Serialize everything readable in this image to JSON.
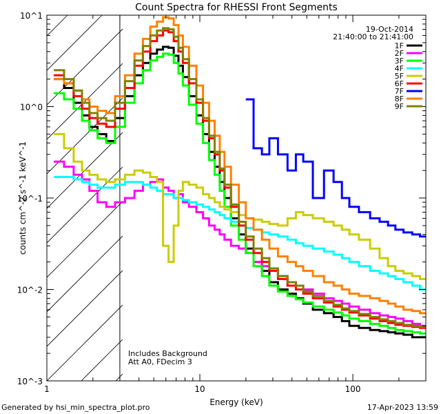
{
  "chart_data": {
    "type": "line",
    "title": "Count Spectra for RHESSI Front Segments",
    "xlabel": "Energy (keV)",
    "ylabel": "counts cm^-2 s^-1 keV^-1",
    "xscale": "log",
    "yscale": "log",
    "xlim": [
      1.0,
      300.0
    ],
    "ylim": [
      0.001,
      10.0
    ],
    "x_tick_labels": [
      "1",
      "10",
      "100"
    ],
    "y_tick_labels": [
      "10^-3",
      "10^-2",
      "10^-1",
      "10^0",
      "10^1"
    ],
    "date": "19-Oct-2014",
    "time_range": "21:40:00 to 21:41:00",
    "annotations": [
      "Includes Background",
      "Att A0, FDecim 3"
    ],
    "hatched_region_below_keV": 3.0,
    "x": [
      1.2,
      1.4,
      1.6,
      1.8,
      2.0,
      2.3,
      2.6,
      3.0,
      3.5,
      4.0,
      4.5,
      5.0,
      5.5,
      6.0,
      6.5,
      7.0,
      7.5,
      8.0,
      9.0,
      10,
      11,
      12,
      13,
      14,
      15,
      17,
      19,
      21,
      24,
      27,
      30,
      35,
      40,
      45,
      50,
      60,
      70,
      80,
      90,
      100,
      120,
      140,
      160,
      180,
      200,
      230,
      260,
      290
    ],
    "series": [
      {
        "name": "1F",
        "color": "#000000",
        "values": [
          2.0,
          1.6,
          1.1,
          0.8,
          0.6,
          0.5,
          0.42,
          0.75,
          1.3,
          2.2,
          3.0,
          3.8,
          4.2,
          4.5,
          4.4,
          3.6,
          2.8,
          2.1,
          1.3,
          0.8,
          0.5,
          0.32,
          0.22,
          0.15,
          0.1,
          0.06,
          0.04,
          0.028,
          0.02,
          0.016,
          0.012,
          0.01,
          0.009,
          0.008,
          0.007,
          0.006,
          0.0055,
          0.005,
          0.0045,
          0.004,
          0.0038,
          0.0036,
          0.0035,
          0.0034,
          0.0033,
          0.0032,
          0.003,
          0.003
        ]
      },
      {
        "name": "2F",
        "color": "#ff00ff",
        "values": [
          0.25,
          0.22,
          0.18,
          0.16,
          0.12,
          0.09,
          0.08,
          0.09,
          0.1,
          0.12,
          0.14,
          0.15,
          0.16,
          0.13,
          0.12,
          0.1,
          0.11,
          0.09,
          0.08,
          0.07,
          0.06,
          0.05,
          0.045,
          0.04,
          0.035,
          0.03,
          0.028,
          0.025,
          0.02,
          0.018,
          0.016,
          0.014,
          0.012,
          0.011,
          0.01,
          0.009,
          0.008,
          0.0075,
          0.007,
          0.0065,
          0.006,
          0.0055,
          0.0052,
          0.005,
          0.0048,
          0.0045,
          0.0042,
          0.004
        ]
      },
      {
        "name": "3F",
        "color": "#00ff00",
        "values": [
          1.4,
          1.2,
          0.95,
          0.7,
          0.55,
          0.45,
          0.4,
          0.6,
          1.1,
          1.8,
          2.5,
          3.2,
          3.5,
          3.8,
          3.7,
          3.0,
          2.3,
          1.7,
          1.05,
          0.65,
          0.4,
          0.26,
          0.18,
          0.12,
          0.08,
          0.05,
          0.035,
          0.025,
          0.018,
          0.014,
          0.011,
          0.0095,
          0.0085,
          0.0078,
          0.0072,
          0.0065,
          0.006,
          0.0056,
          0.0052,
          0.0048,
          0.0045,
          0.0042,
          0.004,
          0.0038,
          0.0036,
          0.0035,
          0.0034,
          0.0033
        ]
      },
      {
        "name": "4F",
        "color": "#00ffff",
        "values": [
          0.17,
          0.17,
          0.16,
          0.15,
          0.14,
          0.13,
          0.13,
          0.14,
          0.15,
          0.15,
          0.14,
          0.13,
          0.12,
          0.11,
          0.11,
          0.1,
          0.1,
          0.095,
          0.09,
          0.085,
          0.08,
          0.075,
          0.07,
          0.065,
          0.06,
          0.055,
          0.05,
          0.047,
          0.045,
          0.042,
          0.04,
          0.038,
          0.035,
          0.032,
          0.03,
          0.028,
          0.026,
          0.024,
          0.022,
          0.02,
          0.018,
          0.016,
          0.015,
          0.014,
          0.013,
          0.012,
          0.011,
          0.01
        ]
      },
      {
        "name": "5F",
        "color": "#cccc00",
        "values": [
          0.5,
          0.35,
          0.25,
          0.2,
          0.18,
          0.16,
          0.15,
          0.16,
          0.18,
          0.2,
          0.19,
          0.17,
          0.15,
          0.03,
          0.02,
          0.05,
          0.12,
          0.15,
          0.14,
          0.13,
          0.11,
          0.1,
          0.09,
          0.08,
          0.075,
          0.07,
          0.065,
          0.06,
          0.058,
          0.055,
          0.052,
          0.05,
          0.06,
          0.07,
          0.065,
          0.06,
          0.055,
          0.05,
          0.045,
          0.04,
          0.035,
          0.028,
          0.022,
          0.018,
          0.016,
          0.015,
          0.014,
          0.013
        ]
      },
      {
        "name": "6F",
        "color": "#ff0000",
        "values": [
          2.2,
          1.8,
          1.3,
          0.95,
          0.75,
          0.65,
          0.6,
          0.95,
          1.6,
          2.8,
          4.0,
          5.2,
          6.0,
          6.8,
          6.5,
          5.2,
          4.0,
          3.0,
          1.8,
          1.1,
          0.7,
          0.45,
          0.3,
          0.2,
          0.13,
          0.08,
          0.05,
          0.035,
          0.025,
          0.02,
          0.016,
          0.013,
          0.011,
          0.01,
          0.009,
          0.008,
          0.0072,
          0.0065,
          0.006,
          0.0056,
          0.0052,
          0.0048,
          0.0045,
          0.0043,
          0.0041,
          0.004,
          0.0039,
          0.0038
        ]
      },
      {
        "name": "7F",
        "color": "#0000ff",
        "values": [
          null,
          null,
          null,
          null,
          null,
          null,
          null,
          null,
          null,
          null,
          null,
          null,
          null,
          null,
          null,
          null,
          null,
          null,
          null,
          null,
          null,
          null,
          null,
          null,
          null,
          null,
          null,
          1.2,
          0.35,
          0.3,
          0.45,
          0.3,
          0.2,
          0.3,
          0.25,
          0.1,
          0.2,
          0.15,
          0.1,
          0.08,
          0.07,
          0.06,
          0.055,
          0.05,
          0.045,
          0.042,
          0.04,
          0.038
        ]
      },
      {
        "name": "8F",
        "color": "#ff8000",
        "values": [
          2.0,
          1.8,
          1.5,
          1.2,
          1.0,
          0.9,
          0.85,
          1.3,
          2.2,
          3.8,
          5.5,
          7.5,
          8.5,
          9.5,
          9.2,
          7.8,
          6.0,
          4.5,
          2.8,
          1.7,
          1.1,
          0.7,
          0.48,
          0.32,
          0.22,
          0.14,
          0.09,
          0.06,
          0.045,
          0.035,
          0.028,
          0.023,
          0.02,
          0.018,
          0.016,
          0.014,
          0.012,
          0.011,
          0.01,
          0.009,
          0.0085,
          0.008,
          0.0075,
          0.007,
          0.0065,
          0.006,
          0.0058,
          0.0055
        ]
      },
      {
        "name": "9F",
        "color": "#808000",
        "values": [
          2.5,
          2.0,
          1.5,
          1.1,
          0.85,
          0.75,
          0.7,
          1.1,
          1.9,
          3.2,
          4.6,
          6.0,
          6.8,
          7.2,
          7.0,
          5.8,
          4.4,
          3.3,
          2.0,
          1.2,
          0.75,
          0.48,
          0.32,
          0.21,
          0.14,
          0.085,
          0.055,
          0.038,
          0.028,
          0.022,
          0.017,
          0.014,
          0.012,
          0.011,
          0.0095,
          0.0085,
          0.0075,
          0.0068,
          0.0062,
          0.0058,
          0.0054,
          0.005,
          0.0047,
          0.0045,
          0.0043,
          0.0041,
          0.004,
          0.0039
        ]
      }
    ]
  },
  "footer": {
    "left": "Generated by hsi_min_spectra_plot.pro",
    "right": "17-Apr-2023 13:59"
  }
}
